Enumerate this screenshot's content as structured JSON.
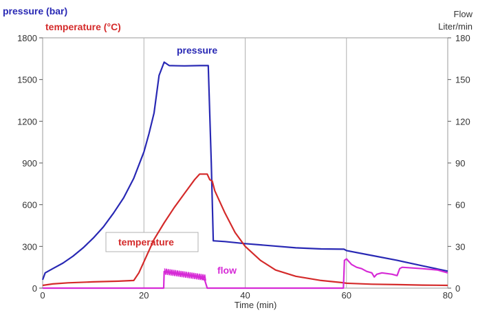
{
  "chart_data": {
    "type": "line",
    "xlabel": "Time (min)",
    "ylabel_left": [
      "pressure (bar)",
      "temperature (°C)"
    ],
    "ylabel_right": [
      "Flow",
      "Liter/min"
    ],
    "xlim": [
      0,
      80
    ],
    "ylim_left": [
      0,
      1800
    ],
    "ylim_right": [
      0,
      180
    ],
    "x_ticks": [
      0,
      20,
      40,
      60,
      80
    ],
    "y_ticks_left": [
      0,
      300,
      600,
      900,
      1200,
      1500,
      1800
    ],
    "y_ticks_right": [
      0,
      30,
      60,
      90,
      120,
      150,
      180
    ],
    "grid": true,
    "colors": {
      "pressure": "#2828b4",
      "temperature": "#d42a2a",
      "flow": "#d62ad6"
    },
    "series": [
      {
        "name": "pressure",
        "axis": "left",
        "points": [
          [
            0,
            60
          ],
          [
            0.5,
            110
          ],
          [
            2,
            140
          ],
          [
            4,
            180
          ],
          [
            6,
            230
          ],
          [
            8,
            290
          ],
          [
            10,
            360
          ],
          [
            12,
            440
          ],
          [
            14,
            540
          ],
          [
            16,
            650
          ],
          [
            18,
            790
          ],
          [
            20,
            980
          ],
          [
            21,
            1110
          ],
          [
            22,
            1260
          ],
          [
            23,
            1530
          ],
          [
            24,
            1625
          ],
          [
            25,
            1600
          ],
          [
            28,
            1598
          ],
          [
            31,
            1600
          ],
          [
            32.7,
            1600
          ],
          [
            33.3,
            900
          ],
          [
            33.7,
            340
          ],
          [
            36,
            335
          ],
          [
            40,
            320
          ],
          [
            45,
            305
          ],
          [
            50,
            290
          ],
          [
            55,
            282
          ],
          [
            59.5,
            280
          ],
          [
            60,
            270
          ],
          [
            65,
            235
          ],
          [
            70,
            200
          ],
          [
            75,
            160
          ],
          [
            80,
            122
          ]
        ]
      },
      {
        "name": "temperature",
        "axis": "left",
        "points": [
          [
            0,
            20
          ],
          [
            2,
            30
          ],
          [
            5,
            38
          ],
          [
            10,
            45
          ],
          [
            15,
            50
          ],
          [
            18,
            55
          ],
          [
            19,
            110
          ],
          [
            20,
            190
          ],
          [
            22,
            350
          ],
          [
            24,
            470
          ],
          [
            26,
            580
          ],
          [
            28,
            680
          ],
          [
            30,
            780
          ],
          [
            31,
            820
          ],
          [
            32.5,
            820
          ],
          [
            33,
            780
          ],
          [
            33.5,
            770
          ],
          [
            34,
            700
          ],
          [
            36,
            540
          ],
          [
            38,
            400
          ],
          [
            40,
            300
          ],
          [
            43,
            200
          ],
          [
            46,
            130
          ],
          [
            50,
            85
          ],
          [
            55,
            55
          ],
          [
            59,
            40
          ],
          [
            60,
            35
          ],
          [
            65,
            28
          ],
          [
            70,
            25
          ],
          [
            75,
            22
          ],
          [
            80,
            20
          ]
        ]
      },
      {
        "name": "flow",
        "axis": "right",
        "points": [
          [
            0,
            0
          ],
          [
            23.9,
            0
          ],
          [
            24,
            12
          ],
          [
            25,
            11
          ],
          [
            26,
            10.5
          ],
          [
            27,
            10
          ],
          [
            28,
            9.5
          ],
          [
            29,
            9
          ],
          [
            30,
            8.5
          ],
          [
            31,
            7.5
          ],
          [
            32,
            6
          ],
          [
            32.5,
            0
          ],
          [
            59.4,
            0
          ],
          [
            59.6,
            20
          ],
          [
            60,
            21
          ],
          [
            61,
            17
          ],
          [
            62,
            15
          ],
          [
            63,
            14
          ],
          [
            64,
            12
          ],
          [
            65,
            11
          ],
          [
            65.5,
            8
          ],
          [
            66,
            10
          ],
          [
            67,
            11
          ],
          [
            69,
            10
          ],
          [
            70,
            9
          ],
          [
            70.5,
            14
          ],
          [
            71,
            15
          ],
          [
            75,
            14
          ],
          [
            78,
            13
          ],
          [
            80,
            11
          ]
        ]
      }
    ],
    "annotations": [
      "pressure",
      "temperature",
      "flow"
    ]
  }
}
